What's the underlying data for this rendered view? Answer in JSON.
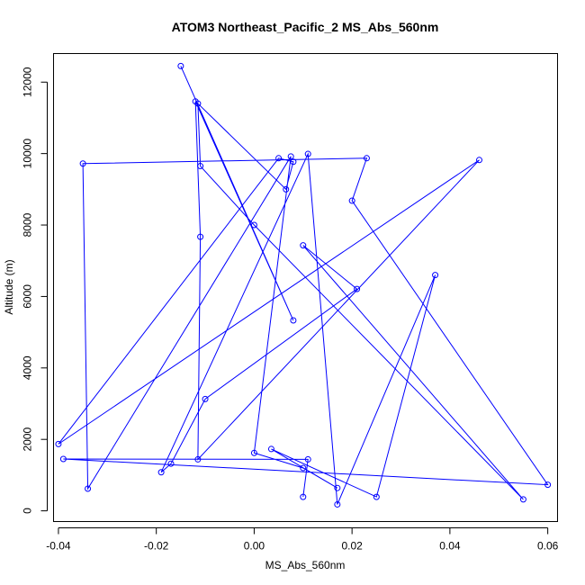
{
  "chart_data": {
    "type": "scatter",
    "title": "ATOM3 Northeast_Pacific_2 MS_Abs_560nm",
    "xlabel": "MS_Abs_560nm",
    "ylabel": "Altitude (m)",
    "xlim": [
      -0.041,
      0.062
    ],
    "ylim": [
      -300,
      12800
    ],
    "x_ticks": [
      -0.04,
      -0.02,
      0.0,
      0.02,
      0.04,
      0.06
    ],
    "x_tick_labels": [
      "-0.04",
      "-0.02",
      "0.00",
      "0.02",
      "0.04",
      "0.06"
    ],
    "y_ticks": [
      0,
      2000,
      4000,
      6000,
      8000,
      10000,
      12000
    ],
    "y_tick_labels": [
      "0",
      "2000",
      "4000",
      "6000",
      "8000",
      "10000",
      "12000"
    ],
    "grid": false,
    "legend": "none",
    "connected": true,
    "marker": "open-circle",
    "color": "#0000ff",
    "series": [
      {
        "x": [
          -0.015,
          0.008,
          -0.012,
          -0.011,
          -0.0115,
          0.046,
          -0.04,
          0.005,
          0.008,
          0.0065,
          -0.0115,
          -0.011,
          0.0,
          0.055,
          0.01,
          0.021,
          -0.01,
          -0.017,
          -0.019,
          0.011,
          0.017,
          0.037,
          0.025,
          0.0035,
          0.017,
          0.01,
          0.0,
          0.0075,
          -0.034,
          -0.035,
          0.023,
          0.02,
          0.06,
          -0.039,
          0.011,
          0.01
        ],
        "y": [
          12450,
          5330,
          11460,
          7670,
          1440,
          9820,
          1870,
          9870,
          9770,
          9000,
          11400,
          9650,
          8000,
          320,
          7430,
          6210,
          3130,
          1320,
          1080,
          9990,
          180,
          6600,
          390,
          1730,
          640,
          1200,
          1620,
          9920,
          620,
          9720,
          9870,
          8680,
          730,
          1450,
          1440,
          390
        ]
      }
    ]
  }
}
